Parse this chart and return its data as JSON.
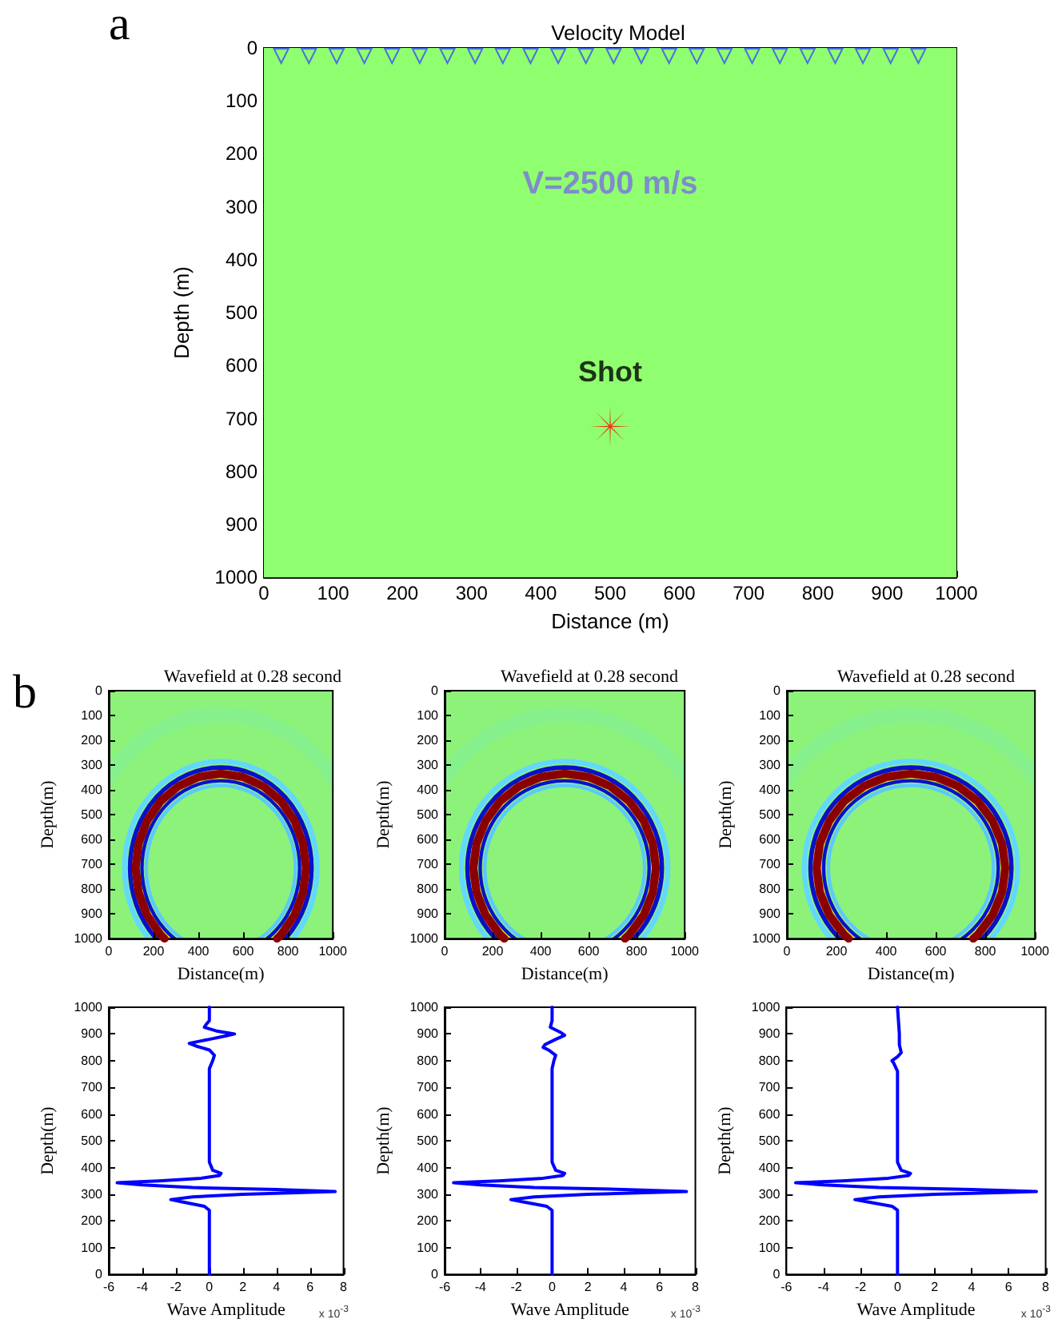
{
  "chart_data": [
    {
      "type": "scatter",
      "title": "Velocity Model",
      "xlabel": "Distance (m)",
      "ylabel": "Depth (m)",
      "xlim": [
        0,
        1000
      ],
      "ylim": [
        1000,
        0
      ],
      "xticks": [
        0,
        100,
        200,
        300,
        400,
        500,
        600,
        700,
        800,
        900,
        1000
      ],
      "yticks": [
        0,
        100,
        200,
        300,
        400,
        500,
        600,
        700,
        800,
        900,
        1000
      ],
      "annotations": [
        "a"
      ],
      "bands": [
        {
          "axis": "y",
          "from": 0,
          "to": 1000,
          "label": "V=2500 m/s",
          "color": "#8fff6f"
        }
      ],
      "series": [
        {
          "color": "#3a4cff",
          "marker": "triangle",
          "x": [
            25,
            65,
            105,
            145,
            185,
            225,
            265,
            305,
            345,
            385,
            425,
            465,
            505,
            545,
            585,
            625,
            665,
            705,
            745,
            785,
            825,
            865,
            905,
            945
          ],
          "values": [
            15,
            15,
            15,
            15,
            15,
            15,
            15,
            15,
            15,
            15,
            15,
            15,
            15,
            15,
            15,
            15,
            15,
            15,
            15,
            15,
            15,
            15,
            15,
            15
          ]
        },
        {
          "name": "Shot",
          "color": "#ff0000",
          "marker": "cross",
          "x": [
            500
          ],
          "values": [
            715
          ]
        }
      ]
    },
    {
      "type": "line",
      "title": "Wavefield at 0.28 second",
      "xlabel": "Distance(m)",
      "ylabel": "Depth(m)",
      "xlim": [
        0,
        1000
      ],
      "ylim": [
        1000,
        0
      ],
      "xticks": [
        0,
        200,
        400,
        600,
        800,
        1000
      ],
      "yticks": [
        0,
        100,
        200,
        300,
        400,
        500,
        600,
        700,
        800,
        900,
        1000
      ],
      "annotations": [
        "b"
      ],
      "series": [
        {
          "color": "#8a0000",
          "x": [
            249,
            231,
            171,
            133,
            120,
            133,
            171,
            231,
            310,
            402,
            500,
            598,
            690,
            769,
            829,
            867,
            880,
            867,
            829,
            769,
            751
          ],
          "values": [
            1000,
            984,
            905,
            813,
            715,
            617,
            525,
            446,
            386,
            348,
            335,
            348,
            386,
            446,
            525,
            617,
            715,
            813,
            905,
            984,
            1000
          ]
        }
      ]
    },
    {
      "type": "line",
      "title": "Wavefield at 0.28 second",
      "xlabel": "Distance(m)",
      "ylabel": "Depth(m)",
      "xlim": [
        0,
        1000
      ],
      "ylim": [
        1000,
        0
      ],
      "xticks": [
        0,
        200,
        400,
        600,
        800,
        1000
      ],
      "yticks": [
        0,
        100,
        200,
        300,
        400,
        500,
        600,
        700,
        800,
        900,
        1000
      ],
      "series": [
        {
          "color": "#8a0000",
          "x": [
            249,
            231,
            171,
            133,
            120,
            133,
            171,
            231,
            310,
            402,
            500,
            598,
            690,
            769,
            829,
            867,
            880,
            867,
            829,
            769,
            751
          ],
          "values": [
            1000,
            984,
            905,
            813,
            715,
            617,
            525,
            446,
            386,
            348,
            335,
            348,
            386,
            446,
            525,
            617,
            715,
            813,
            905,
            984,
            1000
          ]
        }
      ]
    },
    {
      "type": "line",
      "title": "Wavefield at 0.28 second",
      "xlabel": "Distance(m)",
      "ylabel": "Depth(m)",
      "xlim": [
        0,
        1000
      ],
      "ylim": [
        1000,
        0
      ],
      "xticks": [
        0,
        200,
        400,
        600,
        800,
        1000
      ],
      "yticks": [
        0,
        100,
        200,
        300,
        400,
        500,
        600,
        700,
        800,
        900,
        1000
      ],
      "series": [
        {
          "color": "#8a0000",
          "x": [
            249,
            231,
            171,
            133,
            120,
            133,
            171,
            231,
            310,
            402,
            500,
            598,
            690,
            769,
            829,
            867,
            880,
            867,
            829,
            769,
            751
          ],
          "values": [
            1000,
            984,
            905,
            813,
            715,
            617,
            525,
            446,
            386,
            348,
            335,
            348,
            386,
            446,
            525,
            617,
            715,
            813,
            905,
            984,
            1000
          ]
        }
      ]
    },
    {
      "type": "line",
      "xlabel": "Wave Amplitude",
      "ylabel": "Depth(m)",
      "xlim": [
        -6,
        8
      ],
      "ylim": [
        0,
        1000
      ],
      "xticks": [
        -6,
        -4,
        -2,
        0,
        2,
        4,
        6,
        8
      ],
      "yticks": [
        0,
        100,
        200,
        300,
        400,
        500,
        600,
        700,
        800,
        900,
        1000
      ],
      "annotations": [
        "x 10$^{-3}$"
      ],
      "series": [
        {
          "color": "#0000ff",
          "x": [
            0,
            0,
            -0.3,
            -1.5,
            -2.3,
            -1,
            2,
            7.5,
            4,
            -1,
            -4,
            -5.5,
            -3,
            -0.5,
            0.6,
            0.7,
            0.2,
            0,
            0,
            0,
            0.2,
            0.3,
            0,
            -0.8,
            -1.2,
            0,
            1,
            1.5,
            0.5,
            -0.3,
            -0.2,
            0,
            0
          ],
          "values": [
            0,
            240,
            255,
            270,
            280,
            290,
            300,
            310,
            318,
            325,
            335,
            343,
            350,
            360,
            370,
            378,
            390,
            420,
            600,
            770,
            800,
            820,
            840,
            855,
            865,
            880,
            893,
            900,
            910,
            925,
            935,
            950,
            1000
          ]
        }
      ]
    },
    {
      "type": "line",
      "xlabel": "Wave Amplitude",
      "ylabel": "Depth(m)",
      "xlim": [
        -6,
        8
      ],
      "ylim": [
        0,
        1000
      ],
      "xticks": [
        -6,
        -4,
        -2,
        0,
        2,
        4,
        6,
        8
      ],
      "yticks": [
        0,
        100,
        200,
        300,
        400,
        500,
        600,
        700,
        800,
        900,
        1000
      ],
      "annotations": [
        "x 10$^{-3}$"
      ],
      "series": [
        {
          "color": "#0000ff",
          "x": [
            0,
            0,
            -0.3,
            -1.5,
            -2.3,
            -1,
            2,
            7.5,
            4,
            -1,
            -4,
            -5.5,
            -3,
            -0.5,
            0.6,
            0.7,
            0.2,
            0,
            0,
            0,
            0.1,
            0.2,
            -0.2,
            -0.5,
            -0.4,
            0.2,
            0.7,
            0.5,
            -0.1,
            0,
            0
          ],
          "values": [
            0,
            240,
            255,
            270,
            280,
            290,
            300,
            310,
            318,
            325,
            335,
            343,
            350,
            360,
            370,
            378,
            390,
            420,
            600,
            770,
            800,
            820,
            840,
            850,
            860,
            880,
            895,
            905,
            925,
            950,
            1000
          ]
        }
      ]
    },
    {
      "type": "line",
      "xlabel": "Wave Amplitude",
      "ylabel": "Depth(m)",
      "xlim": [
        -6,
        8
      ],
      "ylim": [
        0,
        1000
      ],
      "xticks": [
        -6,
        -4,
        -2,
        0,
        2,
        4,
        6,
        8
      ],
      "yticks": [
        0,
        100,
        200,
        300,
        400,
        500,
        600,
        700,
        800,
        900,
        1000
      ],
      "annotations": [
        "x 10$^{-3}$"
      ],
      "series": [
        {
          "color": "#0000ff",
          "x": [
            0,
            0,
            -0.3,
            -1.5,
            -2.3,
            -1,
            2,
            7.5,
            4,
            -1,
            -4,
            -5.5,
            -3,
            -0.5,
            0.6,
            0.7,
            0.2,
            0,
            0,
            0,
            -0.2,
            -0.3,
            0,
            0.2,
            0.1,
            0.1,
            0
          ],
          "values": [
            0,
            240,
            255,
            270,
            280,
            290,
            300,
            310,
            318,
            325,
            335,
            343,
            350,
            360,
            370,
            378,
            390,
            420,
            600,
            760,
            790,
            800,
            815,
            830,
            860,
            900,
            1000
          ]
        }
      ]
    }
  ]
}
